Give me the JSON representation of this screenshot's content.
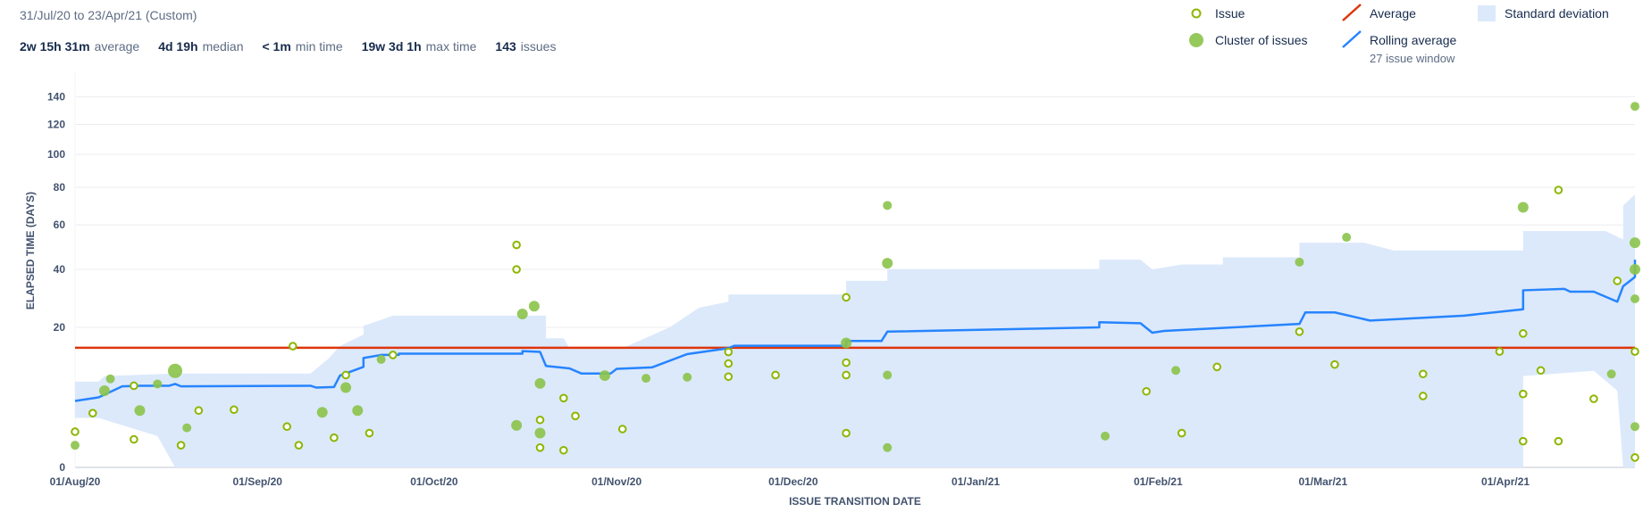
{
  "header": {
    "date_range": "31/Jul/20 to 23/Apr/21 (Custom)",
    "stats": [
      {
        "value": "2w 15h 31m",
        "label": "average"
      },
      {
        "value": "4d 19h",
        "label": "median"
      },
      {
        "value": "< 1m",
        "label": "min time"
      },
      {
        "value": "19w 3d 1h",
        "label": "max time"
      },
      {
        "value": "143",
        "label": "issues"
      }
    ]
  },
  "legend": {
    "issue": "Issue",
    "cluster": "Cluster of issues",
    "average": "Average",
    "rolling": "Rolling average",
    "rolling_sub": "27 issue window",
    "stddev": "Standard deviation"
  },
  "colors": {
    "issue": "#8db600",
    "cluster": "#8bc34a",
    "average": "#de350b",
    "rolling": "#2684ff",
    "stddev": "#dce9fb",
    "grid": "#ebecf0"
  },
  "chart_data": {
    "type": "scatter",
    "xlabel": "ISSUE TRANSITION DATE",
    "ylabel": "ELAPSED TIME (DAYS)",
    "y_scale": "sqrt",
    "ylim": [
      0,
      160
    ],
    "xlim": [
      "2020-08-01",
      "2021-04-23"
    ],
    "x_ticks": [
      "01/Aug/20",
      "01/Sep/20",
      "01/Oct/20",
      "01/Nov/20",
      "01/Dec/20",
      "01/Jan/21",
      "01/Feb/21",
      "01/Mar/21",
      "01/Apr/21"
    ],
    "y_ticks": [
      0,
      20,
      40,
      60,
      80,
      100,
      120,
      140
    ],
    "average": 14.6,
    "issues": [
      {
        "x": "2020-08-01",
        "y": 1.3
      },
      {
        "x": "2020-08-04",
        "y": 3.0
      },
      {
        "x": "2020-08-11",
        "y": 0.8
      },
      {
        "x": "2020-08-11",
        "y": 6.8
      },
      {
        "x": "2020-08-19",
        "y": 0.5
      },
      {
        "x": "2020-08-22",
        "y": 3.3
      },
      {
        "x": "2020-08-28",
        "y": 3.4
      },
      {
        "x": "2020-09-06",
        "y": 1.7
      },
      {
        "x": "2020-09-07",
        "y": 15.0
      },
      {
        "x": "2020-09-08",
        "y": 0.5
      },
      {
        "x": "2020-09-14",
        "y": 0.9
      },
      {
        "x": "2020-09-16",
        "y": 8.7
      },
      {
        "x": "2020-09-20",
        "y": 1.2
      },
      {
        "x": "2020-09-24",
        "y": 12.9
      },
      {
        "x": "2020-10-15",
        "y": 50.5
      },
      {
        "x": "2020-10-15",
        "y": 40.0
      },
      {
        "x": "2020-10-19",
        "y": 0.4
      },
      {
        "x": "2020-10-19",
        "y": 2.3
      },
      {
        "x": "2020-10-23",
        "y": 0.3
      },
      {
        "x": "2020-10-23",
        "y": 4.9
      },
      {
        "x": "2020-10-25",
        "y": 2.7
      },
      {
        "x": "2020-11-02",
        "y": 1.5
      },
      {
        "x": "2020-11-20",
        "y": 8.4
      },
      {
        "x": "2020-11-20",
        "y": 11.0
      },
      {
        "x": "2020-11-20",
        "y": 13.6
      },
      {
        "x": "2020-11-28",
        "y": 8.7
      },
      {
        "x": "2020-12-10",
        "y": 1.2
      },
      {
        "x": "2020-12-10",
        "y": 8.7
      },
      {
        "x": "2020-12-10",
        "y": 11.2
      },
      {
        "x": "2020-12-10",
        "y": 29.5
      },
      {
        "x": "2021-01-30",
        "y": 5.9
      },
      {
        "x": "2021-02-05",
        "y": 1.2
      },
      {
        "x": "2021-02-11",
        "y": 10.3
      },
      {
        "x": "2021-02-25",
        "y": 18.8
      },
      {
        "x": "2021-03-03",
        "y": 10.8
      },
      {
        "x": "2021-03-18",
        "y": 5.2
      },
      {
        "x": "2021-03-18",
        "y": 8.9
      },
      {
        "x": "2021-03-31",
        "y": 13.7
      },
      {
        "x": "2021-04-04",
        "y": 0.7
      },
      {
        "x": "2021-04-04",
        "y": 5.5
      },
      {
        "x": "2021-04-04",
        "y": 18.3
      },
      {
        "x": "2021-04-07",
        "y": 9.6
      },
      {
        "x": "2021-04-10",
        "y": 78.5
      },
      {
        "x": "2021-04-10",
        "y": 0.7
      },
      {
        "x": "2021-04-16",
        "y": 4.8
      },
      {
        "x": "2021-04-20",
        "y": 35.5
      },
      {
        "x": "2021-04-23",
        "y": 0.1
      },
      {
        "x": "2021-04-23",
        "y": 13.7
      }
    ],
    "clusters": [
      {
        "x": "2020-08-01",
        "y": 0.5,
        "r": 5
      },
      {
        "x": "2020-08-06",
        "y": 6.0,
        "r": 6
      },
      {
        "x": "2020-08-07",
        "y": 8.0,
        "r": 5
      },
      {
        "x": "2020-08-12",
        "y": 3.3,
        "r": 6
      },
      {
        "x": "2020-08-15",
        "y": 7.1,
        "r": 5
      },
      {
        "x": "2020-08-18",
        "y": 9.5,
        "r": 8
      },
      {
        "x": "2020-08-20",
        "y": 1.6,
        "r": 5
      },
      {
        "x": "2020-09-12",
        "y": 3.1,
        "r": 6
      },
      {
        "x": "2020-09-16",
        "y": 6.5,
        "r": 6
      },
      {
        "x": "2020-09-18",
        "y": 3.3,
        "r": 6
      },
      {
        "x": "2020-09-22",
        "y": 11.9,
        "r": 5
      },
      {
        "x": "2020-10-15",
        "y": 1.8,
        "r": 6
      },
      {
        "x": "2020-10-16",
        "y": 24.0,
        "r": 6
      },
      {
        "x": "2020-10-18",
        "y": 26.5,
        "r": 6
      },
      {
        "x": "2020-10-19",
        "y": 7.2,
        "r": 6
      },
      {
        "x": "2020-10-19",
        "y": 1.2,
        "r": 6
      },
      {
        "x": "2020-10-30",
        "y": 8.6,
        "r": 6
      },
      {
        "x": "2020-11-06",
        "y": 8.1,
        "r": 5
      },
      {
        "x": "2020-11-13",
        "y": 8.3,
        "r": 5
      },
      {
        "x": "2020-12-10",
        "y": 15.8,
        "r": 6
      },
      {
        "x": "2020-12-17",
        "y": 70.0,
        "r": 5
      },
      {
        "x": "2020-12-17",
        "y": 42.5,
        "r": 6
      },
      {
        "x": "2020-12-17",
        "y": 8.7,
        "r": 5
      },
      {
        "x": "2020-12-17",
        "y": 0.4,
        "r": 5
      },
      {
        "x": "2021-01-23",
        "y": 1.0,
        "r": 5
      },
      {
        "x": "2021-02-04",
        "y": 9.6,
        "r": 5
      },
      {
        "x": "2021-02-25",
        "y": 43.0,
        "r": 5
      },
      {
        "x": "2021-03-05",
        "y": 54.0,
        "r": 5
      },
      {
        "x": "2021-04-04",
        "y": 69.0,
        "r": 6
      },
      {
        "x": "2021-04-19",
        "y": 8.9,
        "r": 5
      },
      {
        "x": "2021-04-23",
        "y": 133.0,
        "r": 5
      },
      {
        "x": "2021-04-23",
        "y": 51.5,
        "r": 6
      },
      {
        "x": "2021-04-23",
        "y": 40.0,
        "r": 6
      },
      {
        "x": "2021-04-23",
        "y": 29.0,
        "r": 5
      },
      {
        "x": "2021-04-23",
        "y": 1.7,
        "r": 5
      }
    ],
    "rolling_average": [
      {
        "x": "2020-08-01",
        "y": 4.5
      },
      {
        "x": "2020-08-05",
        "y": 5.0
      },
      {
        "x": "2020-08-09",
        "y": 6.7
      },
      {
        "x": "2020-08-12",
        "y": 6.8
      },
      {
        "x": "2020-08-17",
        "y": 6.8
      },
      {
        "x": "2020-08-18",
        "y": 7.1
      },
      {
        "x": "2020-08-19",
        "y": 6.7
      },
      {
        "x": "2020-09-10",
        "y": 6.8
      },
      {
        "x": "2020-09-11",
        "y": 6.5
      },
      {
        "x": "2020-09-14",
        "y": 6.6
      },
      {
        "x": "2020-09-15",
        "y": 8.6
      },
      {
        "x": "2020-09-19",
        "y": 10.3
      },
      {
        "x": "2020-09-19",
        "y": 12.2
      },
      {
        "x": "2020-09-22",
        "y": 12.9
      },
      {
        "x": "2020-09-25",
        "y": 12.9
      },
      {
        "x": "2020-09-25",
        "y": 13.2
      },
      {
        "x": "2020-10-16",
        "y": 13.2
      },
      {
        "x": "2020-10-16",
        "y": 13.8
      },
      {
        "x": "2020-10-19",
        "y": 13.6
      },
      {
        "x": "2020-10-20",
        "y": 10.5
      },
      {
        "x": "2020-10-24",
        "y": 10.0
      },
      {
        "x": "2020-10-26",
        "y": 9.0
      },
      {
        "x": "2020-10-31",
        "y": 9.0
      },
      {
        "x": "2020-11-01",
        "y": 9.9
      },
      {
        "x": "2020-11-07",
        "y": 10.2
      },
      {
        "x": "2020-11-13",
        "y": 13.1
      },
      {
        "x": "2020-11-20",
        "y": 14.5
      },
      {
        "x": "2020-11-21",
        "y": 15.1
      },
      {
        "x": "2020-12-10",
        "y": 15.1
      },
      {
        "x": "2020-12-10",
        "y": 16.3
      },
      {
        "x": "2020-12-16",
        "y": 16.3
      },
      {
        "x": "2020-12-17",
        "y": 18.8
      },
      {
        "x": "2021-01-22",
        "y": 20.0
      },
      {
        "x": "2021-01-22",
        "y": 21.5
      },
      {
        "x": "2021-01-29",
        "y": 21.2
      },
      {
        "x": "2021-01-31",
        "y": 18.5
      },
      {
        "x": "2021-02-02",
        "y": 19.0
      },
      {
        "x": "2021-02-25",
        "y": 21.0
      },
      {
        "x": "2021-02-26",
        "y": 24.5
      },
      {
        "x": "2021-03-03",
        "y": 24.5
      },
      {
        "x": "2021-03-09",
        "y": 22.0
      },
      {
        "x": "2021-03-25",
        "y": 23.5
      },
      {
        "x": "2021-04-04",
        "y": 25.5
      },
      {
        "x": "2021-04-04",
        "y": 32.0
      },
      {
        "x": "2021-04-11",
        "y": 32.5
      },
      {
        "x": "2021-04-12",
        "y": 31.5
      },
      {
        "x": "2021-04-16",
        "y": 31.5
      },
      {
        "x": "2021-04-20",
        "y": 28.0
      },
      {
        "x": "2021-04-21",
        "y": 33.5
      },
      {
        "x": "2021-04-23",
        "y": 37.0
      },
      {
        "x": "2021-04-23",
        "y": 44.0
      }
    ],
    "std_dev_upper": [
      {
        "x": "2020-08-01",
        "y": 7.5
      },
      {
        "x": "2020-08-05",
        "y": 7.5
      },
      {
        "x": "2020-08-06",
        "y": 8.5
      },
      {
        "x": "2020-08-18",
        "y": 9.0
      },
      {
        "x": "2020-09-10",
        "y": 9.0
      },
      {
        "x": "2020-09-13",
        "y": 12.0
      },
      {
        "x": "2020-09-15",
        "y": 15.0
      },
      {
        "x": "2020-09-19",
        "y": 18.0
      },
      {
        "x": "2020-09-19",
        "y": 20.5
      },
      {
        "x": "2020-09-20",
        "y": 21.0
      },
      {
        "x": "2020-09-24",
        "y": 23.5
      },
      {
        "x": "2020-10-20",
        "y": 23.5
      },
      {
        "x": "2020-10-20",
        "y": 17.0
      },
      {
        "x": "2020-10-23",
        "y": 17.0
      },
      {
        "x": "2020-10-24",
        "y": 14.5
      },
      {
        "x": "2020-11-02",
        "y": 14.5
      },
      {
        "x": "2020-11-10",
        "y": 20.0
      },
      {
        "x": "2020-11-15",
        "y": 26.0
      },
      {
        "x": "2020-11-20",
        "y": 28.0
      },
      {
        "x": "2020-11-20",
        "y": 30.5
      },
      {
        "x": "2020-12-10",
        "y": 30.5
      },
      {
        "x": "2020-12-10",
        "y": 35.5
      },
      {
        "x": "2020-12-17",
        "y": 35.5
      },
      {
        "x": "2020-12-17",
        "y": 40.0
      },
      {
        "x": "2021-01-22",
        "y": 40.0
      },
      {
        "x": "2021-01-22",
        "y": 44.0
      },
      {
        "x": "2021-01-29",
        "y": 44.0
      },
      {
        "x": "2021-01-31",
        "y": 40.0
      },
      {
        "x": "2021-02-05",
        "y": 42.0
      },
      {
        "x": "2021-02-12",
        "y": 42.0
      },
      {
        "x": "2021-02-12",
        "y": 45.0
      },
      {
        "x": "2021-02-25",
        "y": 45.0
      },
      {
        "x": "2021-02-25",
        "y": 51.5
      },
      {
        "x": "2021-03-08",
        "y": 51.5
      },
      {
        "x": "2021-03-13",
        "y": 48.0
      },
      {
        "x": "2021-04-04",
        "y": 48.0
      },
      {
        "x": "2021-04-04",
        "y": 57.0
      },
      {
        "x": "2021-04-18",
        "y": 57.0
      },
      {
        "x": "2021-04-21",
        "y": 53.0
      },
      {
        "x": "2021-04-21",
        "y": 70.0
      },
      {
        "x": "2021-04-23",
        "y": 76.0
      },
      {
        "x": "2021-04-23",
        "y": 86.0
      }
    ],
    "std_dev_lower": [
      {
        "x": "2020-08-01",
        "y": 2.5
      },
      {
        "x": "2020-08-05",
        "y": 2.5
      },
      {
        "x": "2020-08-15",
        "y": 1.0
      },
      {
        "x": "2020-08-18",
        "y": 0.0
      },
      {
        "x": "2021-04-04",
        "y": 0.0
      },
      {
        "x": "2021-04-04",
        "y": 8.5
      },
      {
        "x": "2021-04-16",
        "y": 9.5
      },
      {
        "x": "2021-04-20",
        "y": 6.0
      },
      {
        "x": "2021-04-21",
        "y": 0.0
      },
      {
        "x": "2021-04-23",
        "y": 0.0
      }
    ]
  }
}
